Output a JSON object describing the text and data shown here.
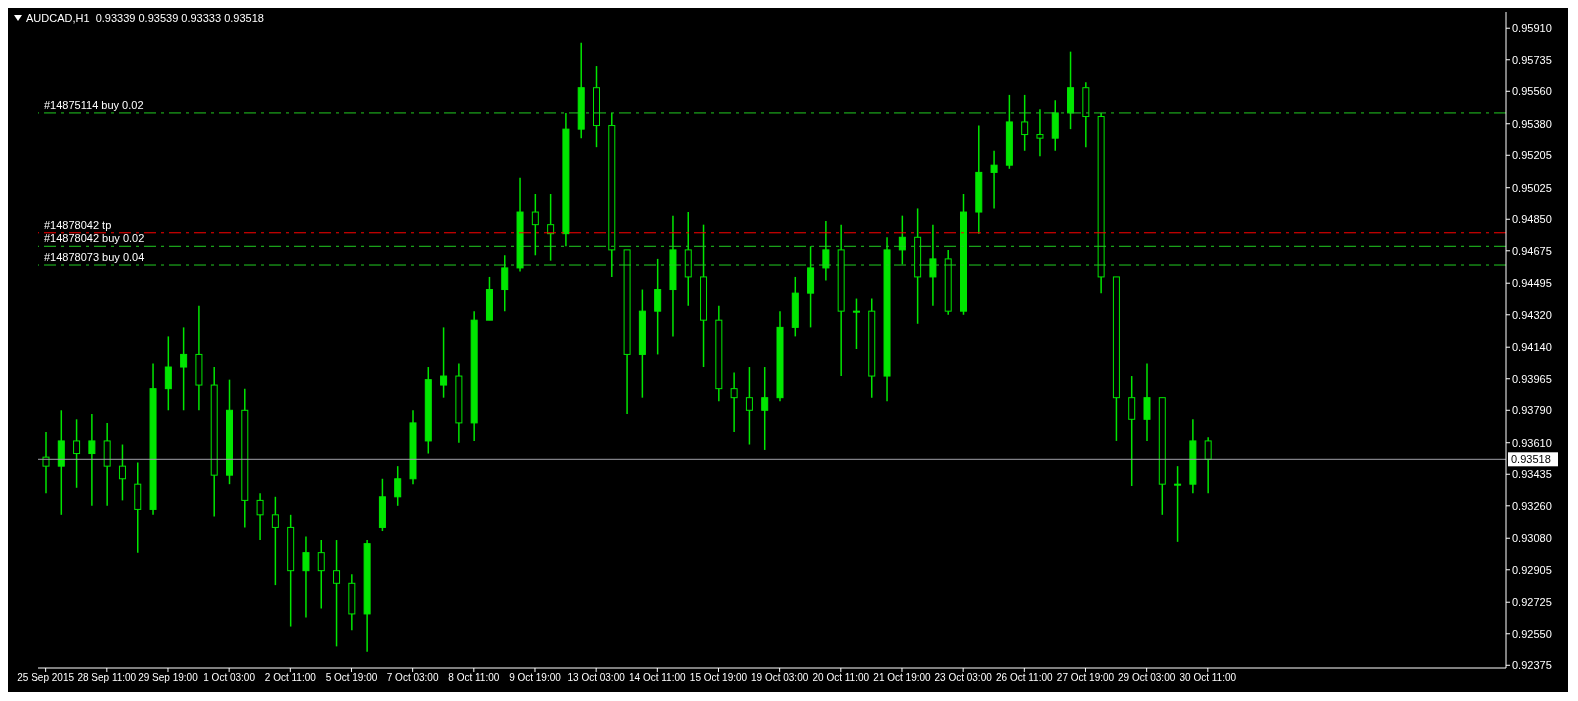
{
  "chart_data": {
    "type": "candlestick",
    "title": "AUDCAD,H1  0.93339 0.93539 0.93333 0.93518",
    "color": "#00e600",
    "categories": [
      "25 Sep 2015",
      null,
      null,
      null,
      "28 Sep 11:00",
      null,
      null,
      null,
      "29 Sep 19:00",
      null,
      null,
      null,
      "1 Oct 03:00",
      null,
      null,
      null,
      "2 Oct 11:00",
      null,
      null,
      null,
      "5 Oct 19:00",
      null,
      null,
      null,
      "7 Oct 03:00",
      null,
      null,
      null,
      "8 Oct 11:00",
      null,
      null,
      null,
      "9 Oct 19:00",
      null,
      null,
      null,
      "13 Oct 03:00",
      null,
      null,
      null,
      "14 Oct 11:00",
      null,
      null,
      null,
      "15 Oct 19:00",
      null,
      null,
      null,
      "19 Oct 03:00",
      null,
      null,
      null,
      "20 Oct 11:00",
      null,
      null,
      null,
      "21 Oct 19:00",
      null,
      null,
      null,
      "23 Oct 03:00",
      null,
      null,
      null,
      "26 Oct 11:00",
      null,
      null,
      null,
      "27 Oct 19:00",
      null,
      null,
      null,
      "29 Oct 03:00",
      null,
      null,
      null,
      "30 Oct 11:00",
      null,
      null,
      null,
      null,
      null,
      null,
      null,
      null,
      null,
      null,
      null,
      null,
      null,
      null,
      null,
      null,
      null,
      null,
      null
    ],
    "ohlc": [
      [
        0.9353,
        0.9367,
        0.9333,
        0.9348
      ],
      [
        0.9348,
        0.9379,
        0.9321,
        0.9362
      ],
      [
        0.9362,
        0.9374,
        0.9336,
        0.9355
      ],
      [
        0.9355,
        0.9377,
        0.9326,
        0.9362
      ],
      [
        0.9362,
        0.9372,
        0.9326,
        0.9348
      ],
      [
        0.9348,
        0.936,
        0.9329,
        0.9341
      ],
      [
        0.9338,
        0.935,
        0.93,
        0.9324
      ],
      [
        0.9324,
        0.9405,
        0.9321,
        0.9391
      ],
      [
        0.9391,
        0.942,
        0.9379,
        0.9403
      ],
      [
        0.9403,
        0.9425,
        0.9379,
        0.941
      ],
      [
        0.941,
        0.9437,
        0.9379,
        0.9393
      ],
      [
        0.9393,
        0.9403,
        0.932,
        0.9343
      ],
      [
        0.9343,
        0.9396,
        0.9338,
        0.9379
      ],
      [
        0.9379,
        0.9391,
        0.9314,
        0.9329
      ],
      [
        0.9329,
        0.9333,
        0.9307,
        0.9321
      ],
      [
        0.9321,
        0.9331,
        0.9282,
        0.9314
      ],
      [
        0.9314,
        0.9321,
        0.9259,
        0.929
      ],
      [
        0.929,
        0.9309,
        0.9264,
        0.93
      ],
      [
        0.93,
        0.9307,
        0.9269,
        0.929
      ],
      [
        0.929,
        0.9307,
        0.9248,
        0.9283
      ],
      [
        0.9283,
        0.9288,
        0.9257,
        0.9266
      ],
      [
        0.9266,
        0.9307,
        0.9245,
        0.9305
      ],
      [
        0.9314,
        0.9341,
        0.9312,
        0.9331
      ],
      [
        0.9331,
        0.9348,
        0.9326,
        0.9341
      ],
      [
        0.9341,
        0.9379,
        0.9338,
        0.9372
      ],
      [
        0.9362,
        0.9403,
        0.9355,
        0.9396
      ],
      [
        0.9393,
        0.9425,
        0.9386,
        0.9398
      ],
      [
        0.9398,
        0.9405,
        0.9361,
        0.9372
      ],
      [
        0.9372,
        0.9434,
        0.9362,
        0.9429
      ],
      [
        0.9429,
        0.9453,
        0.9429,
        0.9446
      ],
      [
        0.9446,
        0.9465,
        0.9434,
        0.9458
      ],
      [
        0.9458,
        0.9508,
        0.9456,
        0.9489
      ],
      [
        0.9489,
        0.9499,
        0.9465,
        0.9482
      ],
      [
        0.9482,
        0.9499,
        0.9462,
        0.9477
      ],
      [
        0.9477,
        0.9544,
        0.947,
        0.9535
      ],
      [
        0.9535,
        0.9583,
        0.953,
        0.9558
      ],
      [
        0.9558,
        0.957,
        0.9525,
        0.9537
      ],
      [
        0.9537,
        0.9544,
        0.9453,
        0.9468
      ],
      [
        0.9468,
        0.9468,
        0.9377,
        0.941
      ],
      [
        0.941,
        0.9446,
        0.9386,
        0.9434
      ],
      [
        0.9434,
        0.9463,
        0.941,
        0.9446
      ],
      [
        0.9446,
        0.9487,
        0.942,
        0.9468
      ],
      [
        0.9468,
        0.9489,
        0.9437,
        0.9453
      ],
      [
        0.9453,
        0.9482,
        0.9403,
        0.9429
      ],
      [
        0.9429,
        0.9437,
        0.9384,
        0.9391
      ],
      [
        0.9391,
        0.94,
        0.9367,
        0.9386
      ],
      [
        0.9386,
        0.9403,
        0.936,
        0.9379
      ],
      [
        0.9379,
        0.9403,
        0.9357,
        0.9386
      ],
      [
        0.9386,
        0.9434,
        0.9384,
        0.9425
      ],
      [
        0.9425,
        0.9453,
        0.942,
        0.9444
      ],
      [
        0.9444,
        0.947,
        0.9425,
        0.9458
      ],
      [
        0.9458,
        0.9484,
        0.9451,
        0.9468
      ],
      [
        0.9468,
        0.9482,
        0.9398,
        0.9434
      ],
      [
        0.9434,
        0.9441,
        0.9413,
        0.9434
      ],
      [
        0.9434,
        0.9441,
        0.9386,
        0.9398
      ],
      [
        0.9398,
        0.9475,
        0.9384,
        0.9468
      ],
      [
        0.9468,
        0.9487,
        0.946,
        0.9475
      ],
      [
        0.9475,
        0.9491,
        0.9427,
        0.9453
      ],
      [
        0.9453,
        0.9482,
        0.9437,
        0.9463
      ],
      [
        0.9463,
        0.9468,
        0.9432,
        0.9434
      ],
      [
        0.9434,
        0.9499,
        0.9432,
        0.9489
      ],
      [
        0.9489,
        0.9537,
        0.9477,
        0.9511
      ],
      [
        0.9511,
        0.9523,
        0.9491,
        0.9515
      ],
      [
        0.9515,
        0.9554,
        0.9513,
        0.9539
      ],
      [
        0.9539,
        0.9554,
        0.9523,
        0.9532
      ],
      [
        0.9532,
        0.9546,
        0.952,
        0.953
      ],
      [
        0.953,
        0.9551,
        0.9523,
        0.9544
      ],
      [
        0.9544,
        0.9578,
        0.9535,
        0.9558
      ],
      [
        0.9558,
        0.9561,
        0.9525,
        0.9542
      ],
      [
        0.9542,
        0.9544,
        0.9444,
        0.9453
      ],
      [
        0.9453,
        0.9453,
        0.9362,
        0.9386
      ],
      [
        0.9386,
        0.9398,
        0.9337,
        0.9374
      ],
      [
        0.9374,
        0.9405,
        0.9362,
        0.9386
      ],
      [
        0.9386,
        0.9386,
        0.9321,
        0.9338
      ],
      [
        0.9338,
        0.9348,
        0.9306,
        0.9338
      ],
      [
        0.9338,
        0.9374,
        0.9333,
        0.9362
      ],
      [
        0.9362,
        0.9364,
        0.9333,
        0.93518
      ],
      null,
      null,
      null,
      null,
      null,
      null,
      null,
      null,
      null,
      null,
      null,
      null,
      null,
      null,
      null,
      null,
      null,
      null,
      null
    ],
    "ylim": [
      0.9236,
      0.96
    ],
    "yticks": [
      {
        "value": 0.9591,
        "label": "0.95910"
      },
      {
        "value": 0.95735,
        "label": "0.95735"
      },
      {
        "value": 0.9556,
        "label": "0.95560"
      },
      {
        "value": 0.9538,
        "label": "0.95380"
      },
      {
        "value": 0.95205,
        "label": "0.95205"
      },
      {
        "value": 0.95025,
        "label": "0.95025"
      },
      {
        "value": 0.9485,
        "label": "0.94850"
      },
      {
        "value": 0.94675,
        "label": "0.94675"
      },
      {
        "value": 0.94495,
        "label": "0.94495"
      },
      {
        "value": 0.9432,
        "label": "0.94320"
      },
      {
        "value": 0.9414,
        "label": "0.94140"
      },
      {
        "value": 0.93965,
        "label": "0.93965"
      },
      {
        "value": 0.9379,
        "label": "0.93790"
      },
      {
        "value": 0.9361,
        "label": "0.93610"
      },
      {
        "value": 0.93435,
        "label": "0.93435"
      },
      {
        "value": 0.9326,
        "label": "0.93260"
      },
      {
        "value": 0.9308,
        "label": "0.93080"
      },
      {
        "value": 0.92905,
        "label": "0.92905"
      },
      {
        "value": 0.92725,
        "label": "0.92725"
      },
      {
        "value": 0.9255,
        "label": "0.92550"
      },
      {
        "value": 0.92375,
        "label": "0.92375"
      }
    ],
    "ref_lines": [
      {
        "axis": "y",
        "value": 0.9544,
        "label": "#14875114 buy 0.02",
        "color": "#22cc22",
        "line_style": "dashed"
      },
      {
        "axis": "y",
        "value": 0.94775,
        "label": "#14878042 tp",
        "color": "#ff0000",
        "line_style": "dashed"
      },
      {
        "axis": "y",
        "value": 0.947,
        "label": "#14878042 buy 0.02",
        "color": "#22cc22",
        "line_style": "dashed"
      },
      {
        "axis": "y",
        "value": 0.94596,
        "label": "#14878073 buy 0.04",
        "color": "#22cc22",
        "line_style": "dashed"
      },
      {
        "axis": "y",
        "value": 0.93518,
        "label": "0.93518",
        "color": "#a0a0a8",
        "line_style": "solid"
      }
    ]
  }
}
